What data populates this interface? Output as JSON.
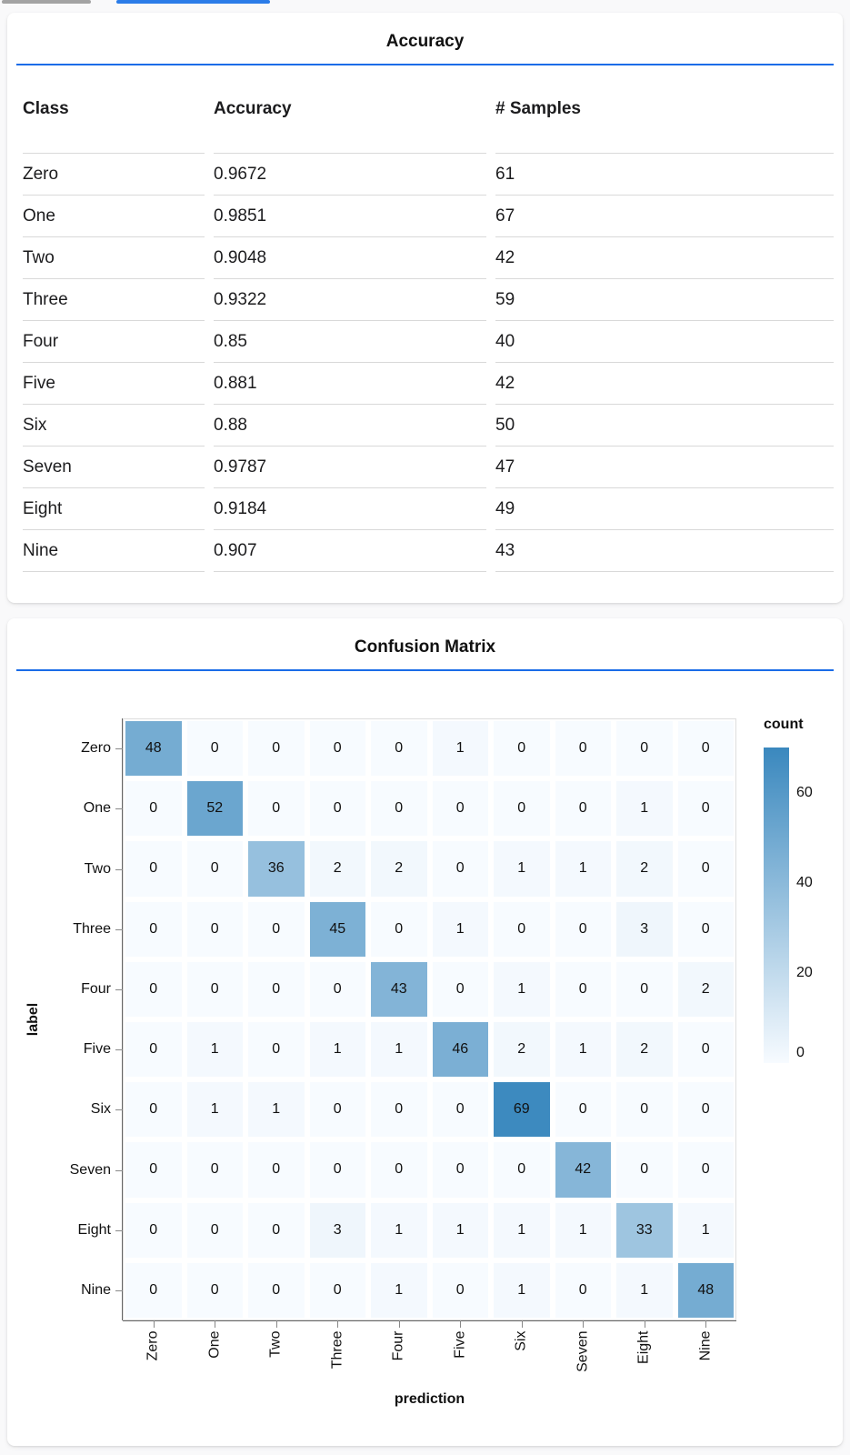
{
  "top_bars": {
    "gray": {
      "color": "#a3a3a3"
    },
    "blue": {
      "color": "#2b7ce8"
    }
  },
  "colors": {
    "title_rule": "#1a6ce8",
    "heatmap_low": "#f7fbff",
    "heatmap_high": "#3a88be"
  },
  "accuracy_card": {
    "title": "Accuracy",
    "table": {
      "columns": [
        "Class",
        "Accuracy",
        "# Samples"
      ],
      "rows": [
        [
          "Zero",
          "0.9672",
          "61"
        ],
        [
          "One",
          "0.9851",
          "67"
        ],
        [
          "Two",
          "0.9048",
          "42"
        ],
        [
          "Three",
          "0.9322",
          "59"
        ],
        [
          "Four",
          "0.85",
          "40"
        ],
        [
          "Five",
          "0.881",
          "42"
        ],
        [
          "Six",
          "0.88",
          "50"
        ],
        [
          "Seven",
          "0.9787",
          "47"
        ],
        [
          "Eight",
          "0.9184",
          "49"
        ],
        [
          "Nine",
          "0.907",
          "43"
        ]
      ]
    }
  },
  "confusion_card": {
    "title": "Confusion Matrix"
  },
  "chart_data": {
    "type": "heatmap",
    "title": "Confusion Matrix",
    "xlabel": "prediction",
    "ylabel": "label",
    "x_categories": [
      "Zero",
      "One",
      "Two",
      "Three",
      "Four",
      "Five",
      "Six",
      "Seven",
      "Eight",
      "Nine"
    ],
    "y_categories": [
      "Zero",
      "One",
      "Two",
      "Three",
      "Four",
      "Five",
      "Six",
      "Seven",
      "Eight",
      "Nine"
    ],
    "matrix": [
      [
        48,
        0,
        0,
        0,
        0,
        1,
        0,
        0,
        0,
        0
      ],
      [
        0,
        52,
        0,
        0,
        0,
        0,
        0,
        0,
        1,
        0
      ],
      [
        0,
        0,
        36,
        2,
        2,
        0,
        1,
        1,
        2,
        0
      ],
      [
        0,
        0,
        0,
        45,
        0,
        1,
        0,
        0,
        3,
        0
      ],
      [
        0,
        0,
        0,
        0,
        43,
        0,
        1,
        0,
        0,
        2
      ],
      [
        0,
        1,
        0,
        1,
        1,
        46,
        2,
        1,
        2,
        0
      ],
      [
        0,
        1,
        1,
        0,
        0,
        0,
        69,
        0,
        0,
        0
      ],
      [
        0,
        0,
        0,
        0,
        0,
        0,
        0,
        42,
        0,
        0
      ],
      [
        0,
        0,
        0,
        3,
        1,
        1,
        1,
        1,
        33,
        1
      ],
      [
        0,
        0,
        0,
        0,
        1,
        0,
        1,
        0,
        1,
        48
      ]
    ],
    "color_scale": {
      "domain": [
        0,
        70
      ],
      "range": [
        "#f7fbff",
        "#3a88be"
      ]
    },
    "legend": {
      "title": "count",
      "ticks": [
        0,
        20,
        40,
        60
      ],
      "position": "right"
    },
    "grid": false
  }
}
